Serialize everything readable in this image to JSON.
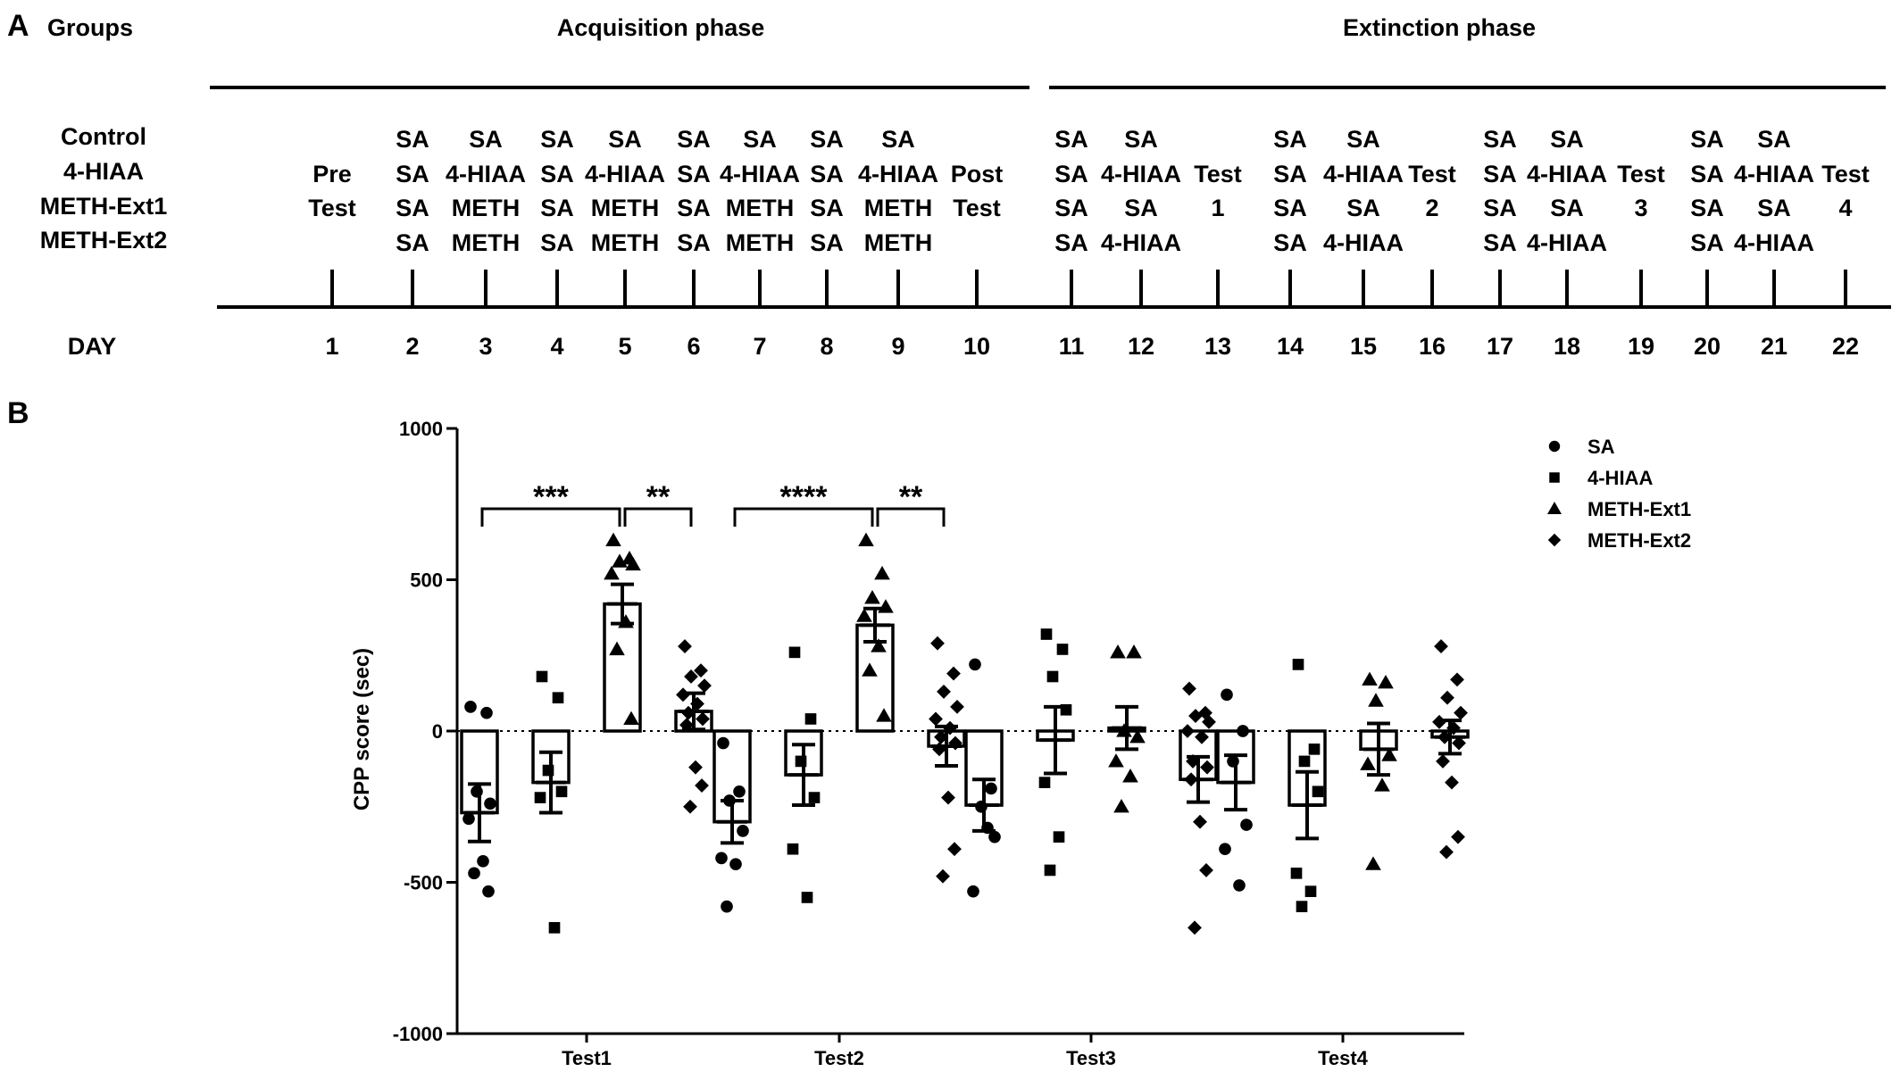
{
  "panel_a": {
    "label": "A",
    "groups_label": "Groups",
    "acquisition_label": "Acquisition phase",
    "extinction_label": "Extinction phase",
    "group_names": [
      "Control",
      "4-HIAA",
      "METH-Ext1",
      "METH-Ext2"
    ],
    "day_label": "DAY",
    "days": [
      {
        "day": "1",
        "rows": [
          "Pre",
          "Test"
        ],
        "start": 1
      },
      {
        "day": "2",
        "rows": [
          "SA",
          "SA",
          "SA",
          "SA"
        ],
        "start": 0
      },
      {
        "day": "3",
        "rows": [
          "SA",
          "4-HIAA",
          "METH",
          "METH"
        ],
        "start": 0
      },
      {
        "day": "4",
        "rows": [
          "SA",
          "SA",
          "SA",
          "SA"
        ],
        "start": 0
      },
      {
        "day": "5",
        "rows": [
          "SA",
          "4-HIAA",
          "METH",
          "METH"
        ],
        "start": 0
      },
      {
        "day": "6",
        "rows": [
          "SA",
          "SA",
          "SA",
          "SA"
        ],
        "start": 0
      },
      {
        "day": "7",
        "rows": [
          "SA",
          "4-HIAA",
          "METH",
          "METH"
        ],
        "start": 0
      },
      {
        "day": "8",
        "rows": [
          "SA",
          "SA",
          "SA",
          "SA"
        ],
        "start": 0
      },
      {
        "day": "9",
        "rows": [
          "SA",
          "4-HIAA",
          "METH",
          "METH"
        ],
        "start": 0
      },
      {
        "day": "10",
        "rows": [
          "Post",
          "Test"
        ],
        "start": 1
      },
      {
        "day": "11",
        "rows": [
          "SA",
          "SA",
          "SA",
          "SA"
        ],
        "start": 0
      },
      {
        "day": "12",
        "rows": [
          "SA",
          "4-HIAA",
          "SA",
          "4-HIAA"
        ],
        "start": 0
      },
      {
        "day": "13",
        "rows": [
          "Test",
          "1"
        ],
        "start": 1
      },
      {
        "day": "14",
        "rows": [
          "SA",
          "SA",
          "SA",
          "SA"
        ],
        "start": 0
      },
      {
        "day": "15",
        "rows": [
          "SA",
          "4-HIAA",
          "SA",
          "4-HIAA"
        ],
        "start": 0
      },
      {
        "day": "16",
        "rows": [
          "Test",
          "2"
        ],
        "start": 1
      },
      {
        "day": "17",
        "rows": [
          "SA",
          "SA",
          "SA",
          "SA"
        ],
        "start": 0
      },
      {
        "day": "18",
        "rows": [
          "SA",
          "4-HIAA",
          "SA",
          "4-HIAA"
        ],
        "start": 0
      },
      {
        "day": "19",
        "rows": [
          "Test",
          "3"
        ],
        "start": 1
      },
      {
        "day": "20",
        "rows": [
          "SA",
          "SA",
          "SA",
          "SA"
        ],
        "start": 0
      },
      {
        "day": "21",
        "rows": [
          "SA",
          "4-HIAA",
          "SA",
          "4-HIAA"
        ],
        "start": 0
      },
      {
        "day": "22",
        "rows": [
          "Test",
          "4"
        ],
        "start": 1
      }
    ]
  },
  "chart_data": {
    "type": "bar",
    "panel_label": "B",
    "ylabel": "CPP score (sec)",
    "ylim": [
      -1000,
      1000
    ],
    "yticks": [
      "1000",
      "500",
      "0",
      "-500",
      "-1000"
    ],
    "categories": [
      "Test1",
      "Test2",
      "Test3",
      "Test4"
    ],
    "legend_position": "top-right",
    "series": [
      {
        "name": "SA",
        "marker": "circle",
        "means": [
          -270,
          -300,
          -245,
          -170
        ],
        "sem": [
          95,
          70,
          85,
          90
        ],
        "points": [
          [
            80,
            60,
            -200,
            -240,
            -290,
            -430,
            -470,
            -530
          ],
          [
            -40,
            -200,
            -230,
            -330,
            -420,
            -440,
            -580
          ],
          [
            220,
            -190,
            -250,
            -350,
            -530,
            -320
          ],
          [
            120,
            0,
            -100,
            -310,
            -390,
            -510
          ]
        ]
      },
      {
        "name": "4-HIAA",
        "marker": "square",
        "means": [
          -170,
          -145,
          -30,
          -245
        ],
        "sem": [
          100,
          100,
          110,
          110
        ],
        "points": [
          [
            180,
            110,
            -130,
            -200,
            -220,
            -650
          ],
          [
            260,
            40,
            -100,
            -220,
            -390,
            -550
          ],
          [
            320,
            270,
            180,
            70,
            -170,
            -350,
            -460
          ],
          [
            220,
            -60,
            -100,
            -200,
            -470,
            -530,
            -580
          ]
        ]
      },
      {
        "name": "METH-Ext1",
        "marker": "triangle",
        "means": [
          420,
          350,
          10,
          -60
        ],
        "sem": [
          65,
          55,
          70,
          85
        ],
        "points": [
          [
            630,
            570,
            560,
            550,
            520,
            360,
            270,
            40
          ],
          [
            630,
            520,
            440,
            410,
            380,
            280,
            200,
            50
          ],
          [
            260,
            260,
            0,
            -20,
            -100,
            -150,
            -250
          ],
          [
            170,
            160,
            100,
            -80,
            -110,
            -180,
            -440
          ]
        ]
      },
      {
        "name": "METH-Ext2",
        "marker": "diamond",
        "means": [
          65,
          -50,
          -160,
          -20
        ],
        "sem": [
          60,
          65,
          75,
          55
        ],
        "points": [
          [
            280,
            200,
            180,
            150,
            120,
            90,
            60,
            40,
            20,
            -120,
            -180,
            -250
          ],
          [
            290,
            190,
            130,
            80,
            40,
            10,
            -20,
            -40,
            -60,
            -220,
            -390,
            -480
          ],
          [
            140,
            60,
            50,
            30,
            0,
            -20,
            -100,
            -120,
            -160,
            -300,
            -460,
            -650
          ],
          [
            280,
            170,
            110,
            60,
            30,
            10,
            -20,
            -40,
            -100,
            -170,
            -350,
            -400
          ]
        ]
      }
    ],
    "annotations": [
      {
        "text": "***",
        "category": "Test1",
        "from_series": 0,
        "to_series": 2
      },
      {
        "text": "**",
        "category": "Test1",
        "from_series": 2,
        "to_series": 3
      },
      {
        "text": "****",
        "category": "Test2",
        "from_series": 0,
        "to_series": 2
      },
      {
        "text": "**",
        "category": "Test2",
        "from_series": 2,
        "to_series": 3
      }
    ]
  }
}
